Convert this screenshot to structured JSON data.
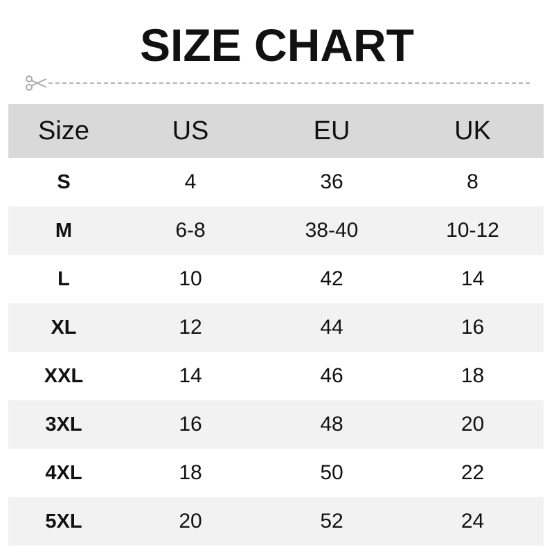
{
  "title": "SIZE CHART",
  "icons": {
    "cut_line": "scissors-icon"
  },
  "table": {
    "headers": [
      "Size",
      "US",
      "EU",
      "UK"
    ],
    "rows": [
      [
        "S",
        "4",
        "36",
        "8"
      ],
      [
        "M",
        "6-8",
        "38-40",
        "10-12"
      ],
      [
        "L",
        "10",
        "42",
        "14"
      ],
      [
        "XL",
        "12",
        "44",
        "16"
      ],
      [
        "XXL",
        "14",
        "46",
        "18"
      ],
      [
        "3XL",
        "16",
        "48",
        "20"
      ],
      [
        "4XL",
        "18",
        "50",
        "22"
      ],
      [
        "5XL",
        "20",
        "52",
        "24"
      ]
    ]
  },
  "colors": {
    "header_bg": "#d9d9d9",
    "alt_row_bg": "#f2f2f2",
    "dash": "#b3b3b3"
  }
}
